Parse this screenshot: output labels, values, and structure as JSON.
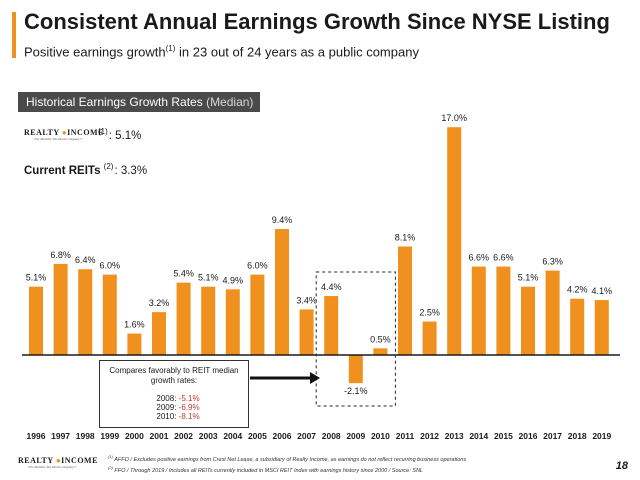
{
  "header": {
    "title": "Consistent Annual Earnings Growth Since NYSE Listing",
    "subtitle_pre": "Positive earnings growth",
    "subtitle_sup": "(1)",
    "subtitle_post": " in 23 out of 24 years as a public company"
  },
  "section": {
    "label": "Historical Earnings Growth Rates",
    "label_muted": " (Median)"
  },
  "logo": {
    "word_left": "REALTY",
    "word_right": "INCOME",
    "tagline": "The Monthly Dividend Company®"
  },
  "stats": {
    "realty_sup": "(1)",
    "realty_value": "5.1%",
    "reits_label": "Current REITs",
    "reits_sup": "(2)",
    "reits_value": "3.3%"
  },
  "callout": {
    "heading": "Compares favorably to REIT median growth rates:",
    "rows": [
      {
        "year": "2008:",
        "value": "-5.1%"
      },
      {
        "year": "2009:",
        "value": "-6.9%"
      },
      {
        "year": "2010:",
        "value": "-8.1%"
      }
    ]
  },
  "footnotes": {
    "line1_sup": "(1)",
    "line1": " AFFO / Excludes positive earnings from Crest Net Lease, a subsidiary of Realty Income, as earnings do not reflect recurring business operations",
    "line2_sup": "(2)",
    "line2": " FFO / Through 2019 / Includes all REITs currently included in MSCI REIT Index with earnings history since 2000 / Source: SNL"
  },
  "page_number": "18",
  "colors": {
    "accent": "#f0901e",
    "bar": "#f0901e",
    "callout_negative": "#c0392b",
    "header_bg": "#4a4a4a"
  },
  "chart_data": {
    "type": "bar",
    "categories": [
      "1996",
      "1997",
      "1998",
      "1999",
      "2000",
      "2001",
      "2002",
      "2003",
      "2004",
      "2005",
      "2006",
      "2007",
      "2008",
      "2009",
      "2010",
      "2011",
      "2012",
      "2013",
      "2014",
      "2015",
      "2016",
      "2017",
      "2018",
      "2019"
    ],
    "values": [
      5.1,
      6.8,
      6.4,
      6.0,
      1.6,
      3.2,
      5.4,
      5.1,
      4.9,
      6.0,
      9.4,
      3.4,
      4.4,
      -2.1,
      0.5,
      8.1,
      2.5,
      17.0,
      6.6,
      6.6,
      5.1,
      6.3,
      4.2,
      4.1
    ],
    "labels": [
      "5.1%",
      "6.8%",
      "6.4%",
      "6.0%",
      "1.6%",
      "3.2%",
      "5.4%",
      "5.1%",
      "4.9%",
      "6.0%",
      "9.4%",
      "3.4%",
      "4.4%",
      "-2.1%",
      "0.5%",
      "8.1%",
      "2.5%",
      "17.0%",
      "6.6%",
      "6.6%",
      "5.1%",
      "6.3%",
      "4.2%",
      "4.1%"
    ],
    "title": "Historical Earnings Growth Rates (Median)",
    "xlabel": "",
    "ylabel": "",
    "highlight_range": [
      "2008",
      "2010"
    ],
    "grid": false,
    "legend": "none"
  }
}
